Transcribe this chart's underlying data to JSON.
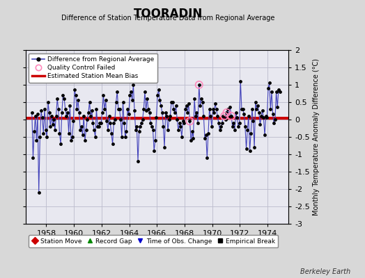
{
  "title": "TOORADIN",
  "subtitle": "Difference of Station Temperature Data from Regional Average",
  "ylabel": "Monthly Temperature Anomaly Difference (°C)",
  "ylim": [
    -3,
    2
  ],
  "xlim": [
    1956.5,
    1975.5
  ],
  "yticks": [
    -3,
    -2.5,
    -2,
    -1.5,
    -1,
    -0.5,
    0,
    0.5,
    1,
    1.5,
    2
  ],
  "xticks": [
    1958,
    1960,
    1962,
    1964,
    1966,
    1968,
    1970,
    1972,
    1974
  ],
  "mean_bias": 0.03,
  "bg_color": "#d8d8d8",
  "plot_bg_color": "#e8e8f0",
  "line_color": "#4444bb",
  "dot_color": "#000000",
  "bias_color": "#cc0000",
  "qc_color": "#ff88bb",
  "time_data": [
    1956.958,
    1957.042,
    1957.125,
    1957.208,
    1957.292,
    1957.375,
    1957.458,
    1957.542,
    1957.625,
    1957.708,
    1957.792,
    1957.875,
    1957.958,
    1958.042,
    1958.125,
    1958.208,
    1958.292,
    1958.375,
    1958.458,
    1958.542,
    1958.625,
    1958.708,
    1958.792,
    1958.875,
    1958.958,
    1959.042,
    1959.125,
    1959.208,
    1959.292,
    1959.375,
    1959.458,
    1959.542,
    1959.625,
    1959.708,
    1959.792,
    1959.875,
    1959.958,
    1960.042,
    1960.125,
    1960.208,
    1960.292,
    1960.375,
    1960.458,
    1960.542,
    1960.625,
    1960.708,
    1960.792,
    1960.875,
    1960.958,
    1961.042,
    1961.125,
    1961.208,
    1961.292,
    1961.375,
    1961.458,
    1961.542,
    1961.625,
    1961.708,
    1961.792,
    1961.875,
    1961.958,
    1962.042,
    1962.125,
    1962.208,
    1962.292,
    1962.375,
    1962.458,
    1962.542,
    1962.625,
    1962.708,
    1962.792,
    1962.875,
    1962.958,
    1963.042,
    1963.125,
    1963.208,
    1963.292,
    1963.375,
    1963.458,
    1963.542,
    1963.625,
    1963.708,
    1963.792,
    1963.875,
    1963.958,
    1964.042,
    1964.125,
    1964.208,
    1964.292,
    1964.375,
    1964.458,
    1964.542,
    1964.625,
    1964.708,
    1964.792,
    1964.875,
    1964.958,
    1965.042,
    1965.125,
    1965.208,
    1965.292,
    1965.375,
    1965.458,
    1965.542,
    1965.625,
    1965.708,
    1965.792,
    1965.875,
    1965.958,
    1966.042,
    1966.125,
    1966.208,
    1966.292,
    1966.375,
    1966.458,
    1966.542,
    1966.625,
    1966.708,
    1966.792,
    1966.875,
    1966.958,
    1967.042,
    1967.125,
    1967.208,
    1967.292,
    1967.375,
    1967.458,
    1967.542,
    1967.625,
    1967.708,
    1967.792,
    1967.875,
    1967.958,
    1968.042,
    1968.125,
    1968.208,
    1968.292,
    1968.375,
    1968.458,
    1968.542,
    1968.625,
    1968.708,
    1968.792,
    1968.875,
    1968.958,
    1969.042,
    1969.125,
    1969.208,
    1969.292,
    1969.375,
    1969.458,
    1969.542,
    1969.625,
    1969.708,
    1969.792,
    1969.875,
    1969.958,
    1970.042,
    1970.125,
    1970.208,
    1970.292,
    1970.375,
    1970.458,
    1970.542,
    1970.625,
    1970.708,
    1970.792,
    1970.875,
    1970.958,
    1971.042,
    1971.125,
    1971.208,
    1971.292,
    1971.375,
    1971.458,
    1971.542,
    1971.625,
    1971.708,
    1971.792,
    1971.875,
    1971.958,
    1972.042,
    1972.125,
    1972.208,
    1972.292,
    1972.375,
    1972.458,
    1972.542,
    1972.625,
    1972.708,
    1972.792,
    1972.875,
    1972.958,
    1973.042,
    1973.125,
    1973.208,
    1973.292,
    1973.375,
    1973.458,
    1973.542,
    1973.625,
    1973.708,
    1973.792,
    1973.875,
    1973.958,
    1974.042,
    1974.125,
    1974.208,
    1974.292,
    1974.375,
    1974.458,
    1974.542,
    1974.625,
    1974.708,
    1974.792,
    1974.875
  ],
  "values": [
    0.2,
    -1.1,
    -0.35,
    0.1,
    -0.6,
    0.15,
    -2.1,
    -0.5,
    0.25,
    0.05,
    -0.4,
    0.3,
    -0.3,
    -0.5,
    0.5,
    0.2,
    -0.2,
    0.1,
    -0.15,
    0.0,
    -0.3,
    0.1,
    0.6,
    0.3,
    -0.4,
    -0.7,
    0.2,
    0.7,
    0.6,
    0.3,
    0.1,
    0.2,
    -0.4,
    0.4,
    -0.6,
    -0.5,
    -0.05,
    0.85,
    0.7,
    0.3,
    0.55,
    0.2,
    -0.3,
    -0.2,
    -0.45,
    0.1,
    -0.6,
    -0.3,
    0.0,
    0.2,
    0.5,
    0.1,
    0.25,
    -0.1,
    -0.3,
    -0.5,
    0.3,
    -0.2,
    -0.2,
    -0.1,
    -0.1,
    0.2,
    0.7,
    0.3,
    0.55,
    -0.05,
    -0.3,
    0.1,
    -0.1,
    -0.4,
    -0.7,
    -0.1,
    0.0,
    0.5,
    0.8,
    0.3,
    0.3,
    0.0,
    -0.5,
    0.5,
    -0.1,
    -0.5,
    -0.35,
    0.3,
    0.15,
    0.7,
    0.8,
    0.55,
    1.0,
    0.25,
    -0.3,
    -0.2,
    -1.2,
    -0.35,
    -0.2,
    -0.1,
    0.0,
    0.3,
    0.8,
    0.25,
    0.6,
    0.3,
    0.2,
    -0.1,
    -0.2,
    -0.3,
    -0.9,
    -0.6,
    0.05,
    0.7,
    0.85,
    0.55,
    0.4,
    0.2,
    -0.2,
    -0.8,
    0.2,
    0.1,
    -0.3,
    0.0,
    0.1,
    0.5,
    0.5,
    0.3,
    0.2,
    0.4,
    0.0,
    -0.3,
    -0.1,
    -0.2,
    -0.5,
    -0.05,
    -0.1,
    0.3,
    0.4,
    0.2,
    0.45,
    -0.05,
    -0.6,
    -0.35,
    -0.55,
    0.6,
    0.1,
    0.2,
    -0.1,
    1.0,
    0.4,
    0.6,
    0.5,
    0.1,
    -0.55,
    -0.45,
    -1.1,
    -0.4,
    0.3,
    0.1,
    -0.2,
    0.3,
    0.2,
    0.45,
    0.3,
    0.1,
    -0.1,
    -0.3,
    -0.2,
    -0.1,
    0.1,
    0.1,
    0.0,
    0.2,
    0.3,
    0.1,
    0.35,
    0.1,
    -0.2,
    -0.1,
    -0.3,
    0.2,
    0.05,
    -0.2,
    -0.1,
    1.1,
    0.3,
    0.3,
    0.15,
    -0.2,
    -0.85,
    -0.3,
    0.1,
    -0.9,
    -0.4,
    0.3,
    -0.05,
    -0.8,
    0.5,
    0.3,
    0.4,
    0.2,
    -0.15,
    0.1,
    0.25,
    0.05,
    -0.45,
    0.1,
    0.05,
    0.9,
    1.05,
    0.3,
    0.8,
    0.15,
    -0.1,
    0.0,
    0.8,
    0.35,
    0.85,
    0.8
  ],
  "qc_failed_indices": [
    137,
    145,
    167,
    169,
    173
  ],
  "legend2_entries": [
    {
      "label": "Station Move",
      "marker": "D",
      "color": "#cc0000",
      "ms": 5
    },
    {
      "label": "Record Gap",
      "marker": "^",
      "color": "#008800",
      "ms": 5
    },
    {
      "label": "Time of Obs. Change",
      "marker": "v",
      "color": "#0000cc",
      "ms": 5
    },
    {
      "label": "Empirical Break",
      "marker": "s",
      "color": "#000000",
      "ms": 4
    }
  ]
}
